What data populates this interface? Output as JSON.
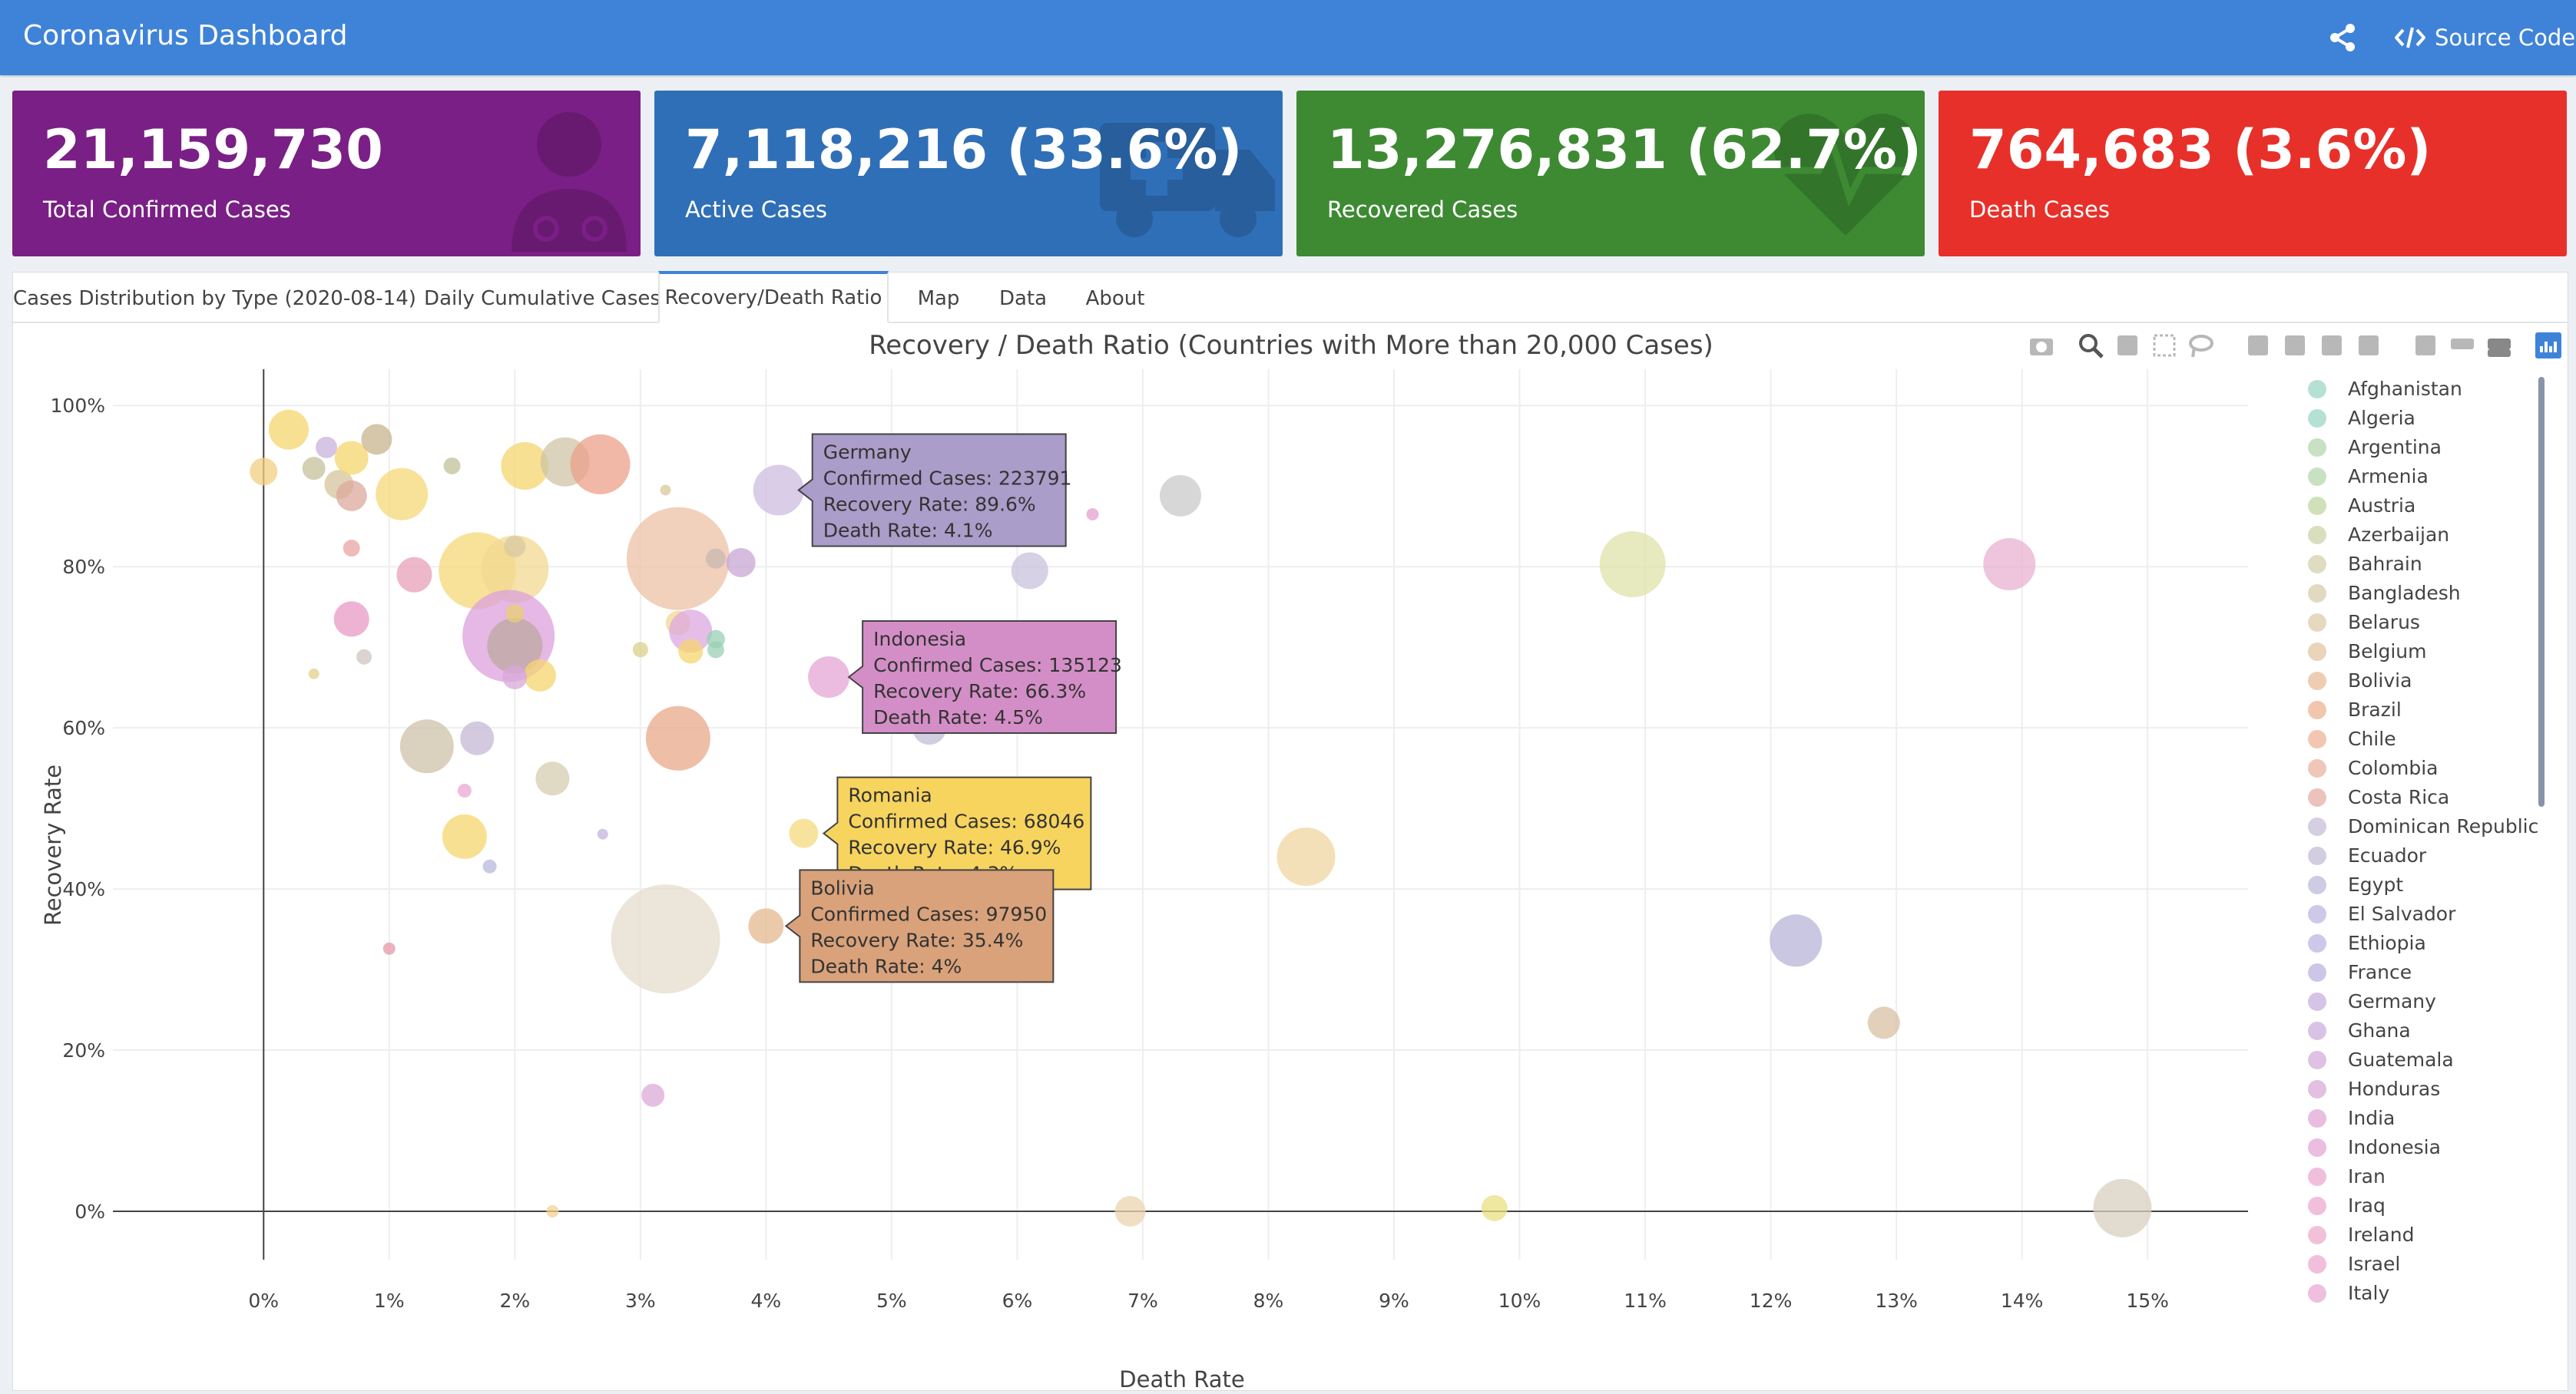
{
  "header": {
    "title": "Coronavirus Dashboard",
    "source_label": "Source Code",
    "color": "#3f83d9"
  },
  "value_boxes": [
    {
      "value": "21,159,730",
      "label": "Total Confirmed Cases",
      "color": "#7a1f85",
      "icon": "doctor-icon"
    },
    {
      "value": "7,118,216 (33.6%)",
      "label": "Active Cases",
      "color": "#2f6fb7",
      "icon": "ambulance-icon"
    },
    {
      "value": "13,276,831 (62.7%)",
      "label": "Recovered Cases",
      "color": "#3d8a33",
      "icon": "heartbeat-icon"
    },
    {
      "value": "764,683 (3.6%)",
      "label": "Death Cases",
      "color": "#e8302a",
      "icon": "none"
    }
  ],
  "tabs": [
    {
      "label": "Cases Distribution by Type (2020-08-14)",
      "active": false
    },
    {
      "label": "Daily Cumulative Cases",
      "active": false
    },
    {
      "label": "Recovery/Death Ratio",
      "active": true
    },
    {
      "label": "Map",
      "active": false
    },
    {
      "label": "Data",
      "active": false
    },
    {
      "label": "About",
      "active": false
    }
  ],
  "toolbar_icons": [
    "camera-icon",
    "zoom-icon",
    "pan-icon",
    "box-select-icon",
    "lasso-icon",
    "zoom-in-icon",
    "zoom-out-icon",
    "autoscale-icon",
    "reset-axes-icon",
    "spike-lines-icon",
    "hover-closest-icon",
    "hover-compare-icon",
    "plotly-logo-icon"
  ],
  "chart_data": {
    "type": "scatter",
    "title": "Recovery / Death Ratio (Countries with More than 20,000 Cases)",
    "xlabel": "Death Rate",
    "ylabel": "Recovery Rate",
    "xlim": [
      -0.012,
      0.158
    ],
    "ylim": [
      -0.06,
      1.045
    ],
    "x_ticks": [
      0,
      0.01,
      0.02,
      0.03,
      0.04,
      0.05,
      0.06,
      0.07,
      0.08,
      0.09,
      0.1,
      0.11,
      0.12,
      0.13,
      0.14,
      0.15
    ],
    "x_tick_labels": [
      "0%",
      "1%",
      "2%",
      "3%",
      "4%",
      "5%",
      "6%",
      "7%",
      "8%",
      "9%",
      "10%",
      "11%",
      "12%",
      "13%",
      "14%",
      "15%"
    ],
    "y_ticks": [
      0,
      0.2,
      0.4,
      0.6,
      0.8,
      1.0
    ],
    "y_tick_labels": [
      "0%",
      "20%",
      "40%",
      "60%",
      "80%",
      "100%"
    ],
    "legend_position": "right",
    "legend": [
      {
        "name": "Afghanistan",
        "color": "#a8dccc"
      },
      {
        "name": "Algeria",
        "color": "#a8dccc"
      },
      {
        "name": "Argentina",
        "color": "#bedcb8"
      },
      {
        "name": "Armenia",
        "color": "#bedcb8"
      },
      {
        "name": "Austria",
        "color": "#c8dcae"
      },
      {
        "name": "Azerbaijan",
        "color": "#d2d8b4"
      },
      {
        "name": "Bahrain",
        "color": "#dad6b6"
      },
      {
        "name": "Bangladesh",
        "color": "#dcd4b6"
      },
      {
        "name": "Belarus",
        "color": "#e2d2b4"
      },
      {
        "name": "Belgium",
        "color": "#e6ccae"
      },
      {
        "name": "Bolivia",
        "color": "#ecc4a4"
      },
      {
        "name": "Brazil",
        "color": "#f0bc9e"
      },
      {
        "name": "Chile",
        "color": "#f0bca4"
      },
      {
        "name": "Colombia",
        "color": "#ecbcaa"
      },
      {
        "name": "Costa Rica",
        "color": "#e8b8b0"
      },
      {
        "name": "Dominican Republic",
        "color": "#cfc6dc"
      },
      {
        "name": "Ecuador",
        "color": "#cac4dc"
      },
      {
        "name": "Egypt",
        "color": "#c6c2e0"
      },
      {
        "name": "El Salvador",
        "color": "#c4c0e4"
      },
      {
        "name": "Ethiopia",
        "color": "#c2bee6"
      },
      {
        "name": "France",
        "color": "#c6bce4"
      },
      {
        "name": "Germany",
        "color": "#ccbae2"
      },
      {
        "name": "Ghana",
        "color": "#d2b8e0"
      },
      {
        "name": "Guatemala",
        "color": "#d8b6de"
      },
      {
        "name": "Honduras",
        "color": "#deb4dc"
      },
      {
        "name": "India",
        "color": "#e4b2da"
      },
      {
        "name": "Indonesia",
        "color": "#e8b2d8"
      },
      {
        "name": "Iran",
        "color": "#ecb4d6"
      },
      {
        "name": "Iraq",
        "color": "#eeb4d4"
      },
      {
        "name": "Ireland",
        "color": "#f0b6d2"
      },
      {
        "name": "Israel",
        "color": "#eeb4d6"
      },
      {
        "name": "Italy",
        "color": "#ecb4d8"
      }
    ],
    "points": [
      {
        "x": 0.002,
        "y": 0.97,
        "r": 26,
        "c": "#f5d56e"
      },
      {
        "x": 0.0,
        "y": 0.918,
        "r": 18,
        "c": "#f0cf80"
      },
      {
        "x": 0.004,
        "y": 0.922,
        "r": 15,
        "c": "#c6c09a"
      },
      {
        "x": 0.005,
        "y": 0.948,
        "r": 14,
        "c": "#c8b2dc"
      },
      {
        "x": 0.006,
        "y": 0.902,
        "r": 19,
        "c": "#d6c49c"
      },
      {
        "x": 0.007,
        "y": 0.935,
        "r": 22,
        "c": "#f5d56e"
      },
      {
        "x": 0.009,
        "y": 0.958,
        "r": 20,
        "c": "#c8b48e"
      },
      {
        "x": 0.007,
        "y": 0.888,
        "r": 20,
        "c": "#dca89c"
      },
      {
        "x": 0.011,
        "y": 0.89,
        "r": 34,
        "c": "#f6d878"
      },
      {
        "x": 0.015,
        "y": 0.925,
        "r": 11,
        "c": "#c2c09a"
      },
      {
        "x": 0.007,
        "y": 0.823,
        "r": 11,
        "c": "#e8a4a0"
      },
      {
        "x": 0.012,
        "y": 0.79,
        "r": 23,
        "c": "#e6a0b8"
      },
      {
        "x": 0.0208,
        "y": 0.925,
        "r": 31,
        "c": "#f5d56e"
      },
      {
        "x": 0.024,
        "y": 0.93,
        "r": 32,
        "c": "#cfc4a6"
      },
      {
        "x": 0.0268,
        "y": 0.927,
        "r": 39,
        "c": "#eca08a"
      },
      {
        "x": 0.032,
        "y": 0.895,
        "r": 7,
        "c": "#d8c89a"
      },
      {
        "x": 0.017,
        "y": 0.795,
        "r": 50,
        "c": "#f6d878"
      },
      {
        "x": 0.02,
        "y": 0.797,
        "r": 44,
        "c": "#f2d890"
      },
      {
        "x": 0.02,
        "y": 0.825,
        "r": 14,
        "c": "#d8c8a0"
      },
      {
        "x": 0.007,
        "y": 0.735,
        "r": 23,
        "c": "#e89ac4"
      },
      {
        "x": 0.0195,
        "y": 0.714,
        "r": 60,
        "c": "#dca0dc"
      },
      {
        "x": 0.02,
        "y": 0.702,
        "r": 36,
        "c": "#bca8a0"
      },
      {
        "x": 0.008,
        "y": 0.688,
        "r": 10,
        "c": "#cfc6c0"
      },
      {
        "x": 0.004,
        "y": 0.667,
        "r": 7,
        "c": "#e2d088"
      },
      {
        "x": 0.02,
        "y": 0.742,
        "r": 12,
        "c": "#e8d070"
      },
      {
        "x": 0.022,
        "y": 0.665,
        "r": 21,
        "c": "#f5d56e"
      },
      {
        "x": 0.02,
        "y": 0.663,
        "r": 16,
        "c": "#d8a8d8"
      },
      {
        "x": 0.033,
        "y": 0.81,
        "r": 67,
        "c": "#ecc0a6"
      },
      {
        "x": 0.036,
        "y": 0.81,
        "r": 13,
        "c": "#c8b8b0"
      },
      {
        "x": 0.038,
        "y": 0.805,
        "r": 19,
        "c": "#c8a6d4"
      },
      {
        "x": 0.033,
        "y": 0.73,
        "r": 16,
        "c": "#f2d890"
      },
      {
        "x": 0.034,
        "y": 0.72,
        "r": 28,
        "c": "#dca8e0"
      },
      {
        "x": 0.034,
        "y": 0.695,
        "r": 16,
        "c": "#f5d56e"
      },
      {
        "x": 0.036,
        "y": 0.71,
        "r": 12,
        "c": "#98d0b4"
      },
      {
        "x": 0.036,
        "y": 0.697,
        "r": 11,
        "c": "#98d0b4"
      },
      {
        "x": 0.03,
        "y": 0.697,
        "r": 10,
        "c": "#d8d08a"
      },
      {
        "x": 0.041,
        "y": 0.895,
        "r": 33,
        "c": "#cdbce0"
      },
      {
        "x": 0.073,
        "y": 0.888,
        "r": 27,
        "c": "#cacaca"
      },
      {
        "x": 0.066,
        "y": 0.865,
        "r": 8,
        "c": "#e4a0d0"
      },
      {
        "x": 0.061,
        "y": 0.795,
        "r": 24,
        "c": "#cac2dc"
      },
      {
        "x": 0.045,
        "y": 0.663,
        "r": 27,
        "c": "#e4a6d4"
      },
      {
        "x": 0.053,
        "y": 0.6,
        "r": 22,
        "c": "#c2bed8"
      },
      {
        "x": 0.013,
        "y": 0.577,
        "r": 35,
        "c": "#cdc2a8"
      },
      {
        "x": 0.017,
        "y": 0.587,
        "r": 22,
        "c": "#c6b8d4"
      },
      {
        "x": 0.033,
        "y": 0.587,
        "r": 42,
        "c": "#eaa88a"
      },
      {
        "x": 0.023,
        "y": 0.537,
        "r": 22,
        "c": "#d6ccb0"
      },
      {
        "x": 0.016,
        "y": 0.522,
        "r": 9,
        "c": "#e8a8d0"
      },
      {
        "x": 0.027,
        "y": 0.468,
        "r": 7,
        "c": "#c4b4dc"
      },
      {
        "x": 0.016,
        "y": 0.465,
        "r": 29,
        "c": "#f5d56e"
      },
      {
        "x": 0.018,
        "y": 0.428,
        "r": 9,
        "c": "#b8b8dc"
      },
      {
        "x": 0.043,
        "y": 0.469,
        "r": 19,
        "c": "#f6da7e"
      },
      {
        "x": 0.083,
        "y": 0.44,
        "r": 38,
        "c": "#f0d6a0"
      },
      {
        "x": 0.032,
        "y": 0.338,
        "r": 71,
        "c": "#e6dccc"
      },
      {
        "x": 0.04,
        "y": 0.354,
        "r": 23,
        "c": "#e4b890"
      },
      {
        "x": 0.01,
        "y": 0.326,
        "r": 8,
        "c": "#e698a8"
      },
      {
        "x": 0.031,
        "y": 0.144,
        "r": 15,
        "c": "#dcaad8"
      },
      {
        "x": 0.023,
        "y": 0.0,
        "r": 8,
        "c": "#f2d290"
      },
      {
        "x": 0.069,
        "y": 0.0,
        "r": 20,
        "c": "#ecd4b0"
      },
      {
        "x": 0.098,
        "y": 0.004,
        "r": 17,
        "c": "#e8e080"
      },
      {
        "x": 0.109,
        "y": 0.803,
        "r": 43,
        "c": "#dfe3a8"
      },
      {
        "x": 0.139,
        "y": 0.803,
        "r": 34,
        "c": "#eab0d2"
      },
      {
        "x": 0.122,
        "y": 0.336,
        "r": 34,
        "c": "#b8b4d8"
      },
      {
        "x": 0.129,
        "y": 0.234,
        "r": 21,
        "c": "#d8c0a4"
      },
      {
        "x": 0.148,
        "y": 0.004,
        "r": 38,
        "c": "#d8d0c0"
      }
    ],
    "tooltips": [
      {
        "country": "Germany",
        "confirmed": "223791",
        "recovery": "89.6%",
        "death": "4.1%",
        "x": 0.041,
        "y": 0.895,
        "color": "#ab9dc9"
      },
      {
        "country": "Indonesia",
        "confirmed": "135123",
        "recovery": "66.3%",
        "death": "4.5%",
        "x": 0.045,
        "y": 0.663,
        "color": "#d48ec7"
      },
      {
        "country": "Romania",
        "confirmed": "68046",
        "recovery": "46.9%",
        "death": "4.3%",
        "x": 0.043,
        "y": 0.469,
        "color": "#f7d45e"
      },
      {
        "country": "Bolivia",
        "confirmed": "97950",
        "recovery": "35.4%",
        "death": "4%",
        "x": 0.04,
        "y": 0.354,
        "color": "#d9a27a"
      }
    ],
    "tooltip_labels": {
      "confirmed": "Confirmed Cases:",
      "recovery": "Recovery Rate:",
      "death": "Death Rate:"
    }
  }
}
